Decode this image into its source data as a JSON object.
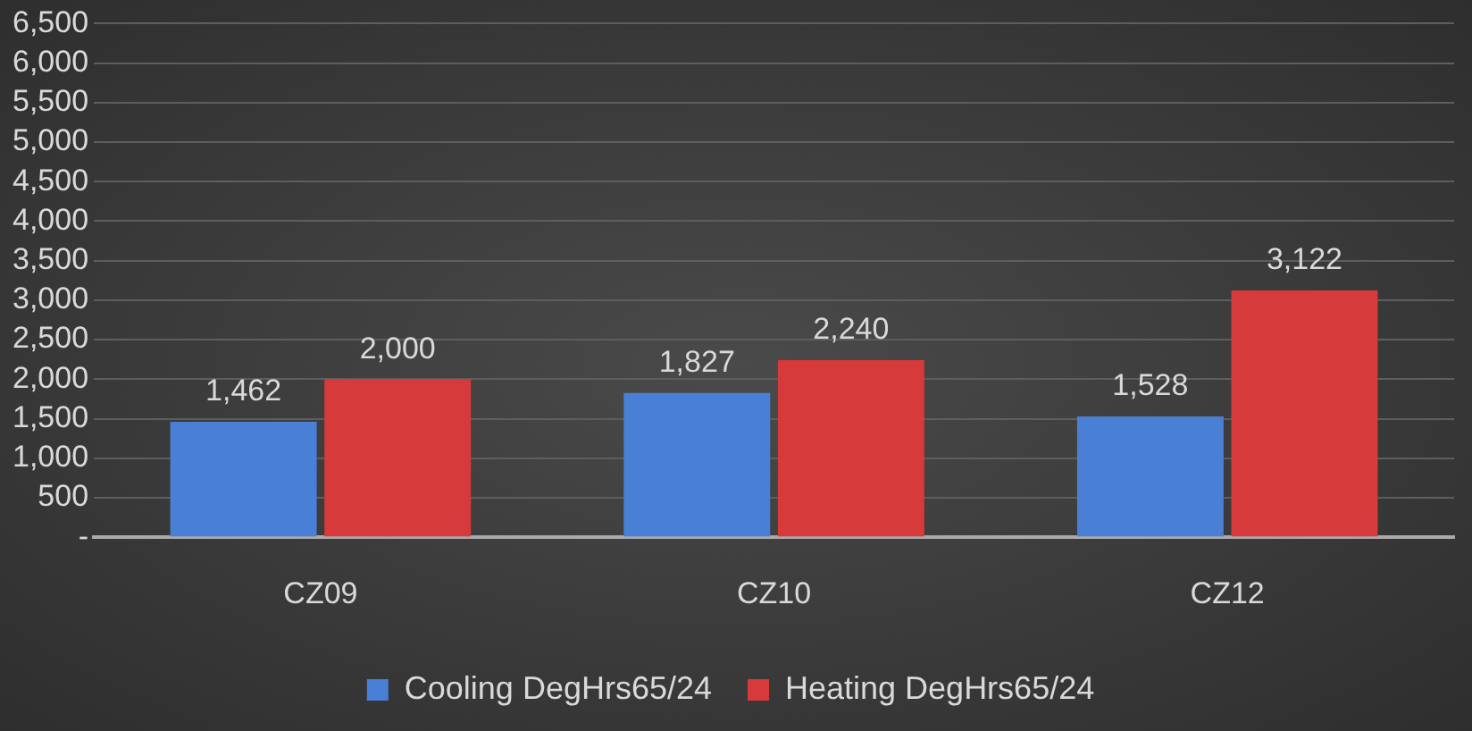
{
  "chart_data": {
    "type": "bar",
    "categories": [
      "CZ09",
      "CZ10",
      "CZ12"
    ],
    "series": [
      {
        "name": "Cooling DegHrs65/24",
        "color": "#4a7fd6",
        "values": [
          1462,
          1827,
          1528
        ],
        "value_labels": [
          "1,462",
          "1,827",
          "1,528"
        ]
      },
      {
        "name": "Heating DegHrs65/24",
        "color": "#d63a3a",
        "values": [
          2000,
          2240,
          3122
        ],
        "value_labels": [
          "2,000",
          "2,240",
          "3,122"
        ]
      }
    ],
    "ylim": [
      0,
      6500
    ],
    "yticks": [
      {
        "value": 0,
        "label": "-"
      },
      {
        "value": 500,
        "label": "500"
      },
      {
        "value": 1000,
        "label": "1,000"
      },
      {
        "value": 1500,
        "label": "1,500"
      },
      {
        "value": 2000,
        "label": "2,000"
      },
      {
        "value": 2500,
        "label": "2,500"
      },
      {
        "value": 3000,
        "label": "3,000"
      },
      {
        "value": 3500,
        "label": "3,500"
      },
      {
        "value": 4000,
        "label": "4,000"
      },
      {
        "value": 4500,
        "label": "4,500"
      },
      {
        "value": 5000,
        "label": "5,000"
      },
      {
        "value": 5500,
        "label": "5,500"
      },
      {
        "value": 6000,
        "label": "6,000"
      },
      {
        "value": 6500,
        "label": "6,500"
      }
    ],
    "grid": "y",
    "legend": "bottom"
  }
}
